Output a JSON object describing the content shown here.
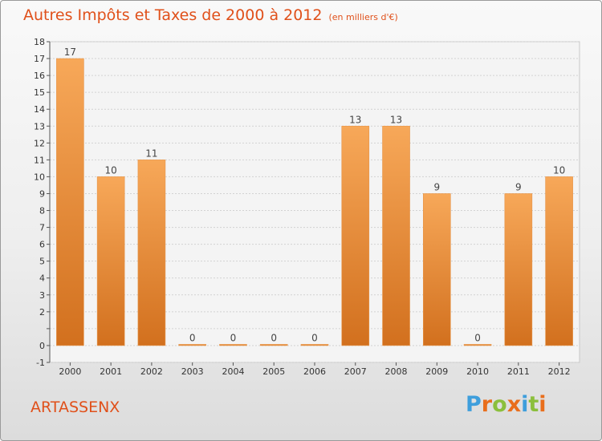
{
  "chart_data": {
    "type": "bar",
    "title": "Autres Impôts et Taxes de 2000 à 2012",
    "subtitle": "(en milliers d'€)",
    "categories": [
      "2000",
      "2001",
      "2002",
      "2003",
      "2004",
      "2005",
      "2006",
      "2007",
      "2008",
      "2009",
      "2010",
      "2011",
      "2012"
    ],
    "values": [
      17,
      10,
      11,
      0,
      0,
      0,
      0,
      13,
      13,
      9,
      0,
      9,
      10
    ],
    "value_labels": [
      "17",
      "10",
      "11",
      "0",
      "0",
      "0",
      "0",
      "13",
      "13",
      "9",
      "0",
      "9",
      "10"
    ],
    "ylim": [
      -1,
      18
    ],
    "yticks": [
      -1,
      0,
      1,
      2,
      3,
      4,
      5,
      6,
      7,
      8,
      9,
      10,
      11,
      12,
      13,
      14,
      15,
      16,
      17,
      18
    ],
    "ytick_labels": [
      "-1",
      "0",
      "",
      "2",
      "3",
      "4",
      "5",
      "6",
      "7",
      "8",
      "9",
      "10",
      "11",
      "12",
      "13",
      "14",
      "15",
      "16",
      "17",
      "18"
    ],
    "grid": true,
    "legend": "none",
    "bar_color_top": "#f7a859",
    "bar_color_bottom": "#d2701e"
  },
  "footer": {
    "commune": "ARTASSENX",
    "logo_letters": [
      {
        "char": "P",
        "color": "#3e9edc"
      },
      {
        "char": "r",
        "color": "#e96e1c"
      },
      {
        "char": "o",
        "color": "#8bbf3c"
      },
      {
        "char": "x",
        "color": "#e96e1c"
      },
      {
        "char": "i",
        "color": "#3e9edc"
      },
      {
        "char": "t",
        "color": "#8bbf3c"
      },
      {
        "char": "i",
        "color": "#e96e1c"
      }
    ]
  },
  "colors": {
    "title": "#e0501a",
    "text": "#333333"
  }
}
